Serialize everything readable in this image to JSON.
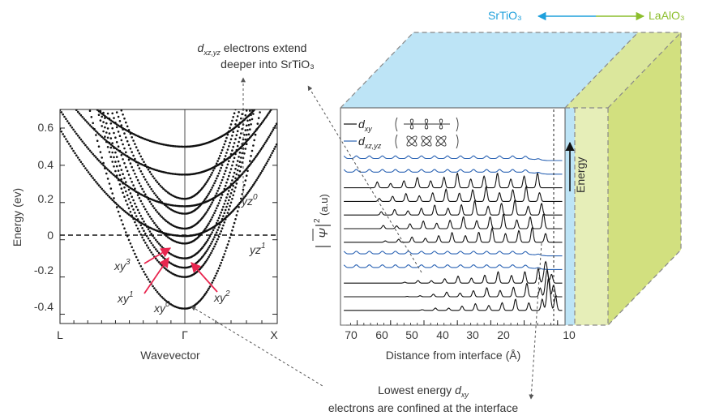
{
  "colors": {
    "srtio3": "#1ea0dc",
    "laalo3": "#8cbe2d",
    "sto_fill": "#bde4f6",
    "lao_fill": "#dbe79c",
    "dxy_line": "#111111",
    "dxzyz_line": "#2c64b4",
    "arrow_red": "#e8264f"
  },
  "header": {
    "srtio3_label": "SrTiO₃",
    "laalo3_label": "LaAlO₃"
  },
  "annotations": {
    "top_line1_sym": "d",
    "top_line1_sub": "xz,yz",
    "top_line1_rest": " electrons extend",
    "top_line2": "deeper into SrTiO₃",
    "bottom_line1": "Lowest energy ",
    "bottom_line1_sym": "d",
    "bottom_line1_sub": "xy",
    "bottom_line2": "electrons are confined at the interface"
  },
  "chart_data": [
    {
      "type": "line",
      "title": "",
      "xlabel": "Wavevector",
      "ylabel": "Energy (ev)",
      "ylim": [
        -0.45,
        0.7
      ],
      "x_ticks": [
        "L",
        "Γ",
        "X"
      ],
      "y_ticks": [
        "0.6",
        "0.4",
        "0.2",
        "0",
        "-0.2",
        "-0.4"
      ],
      "fermi_level": 0,
      "band_labels": [
        {
          "base": "xy",
          "sup": "0",
          "min_energy": -0.37
        },
        {
          "base": "xy",
          "sup": "1",
          "min_energy": -0.2
        },
        {
          "base": "xy",
          "sup": "2",
          "min_energy": -0.15
        },
        {
          "base": "xy",
          "sup": "3",
          "min_energy": -0.1
        },
        {
          "base": "yz",
          "sup": "1",
          "min_energy": 0.02
        },
        {
          "base": "yz",
          "sup": "0",
          "min_energy": 0.18
        }
      ],
      "series": [
        {
          "min": -0.37,
          "curv": 1.6
        },
        {
          "min": -0.2,
          "curv": 1.6
        },
        {
          "min": -0.15,
          "curv": 1.6
        },
        {
          "min": -0.1,
          "curv": 1.6
        },
        {
          "min": -0.02,
          "curv": 1.6
        },
        {
          "min": 0.06,
          "curv": 1.6
        },
        {
          "min": 0.14,
          "curv": 1.6
        },
        {
          "min": 0.22,
          "curv": 1.6
        },
        {
          "min": 0.02,
          "curv": 0.5
        },
        {
          "min": 0.18,
          "curv": 0.45
        },
        {
          "min": 0.35,
          "curv": 0.4
        },
        {
          "min": 0.5,
          "curv": 0.35
        }
      ]
    },
    {
      "type": "line",
      "title": "",
      "xlabel": "Distance from interface (Å)",
      "ylabel_sym": "Ψ",
      "ylabel_sup": "2",
      "ylabel_unit": "(a.u)",
      "energy_label": "Energy",
      "x_ticks": [
        "70",
        "60",
        "50",
        "40",
        "30",
        "20",
        "10"
      ],
      "xlim": [
        75,
        8
      ],
      "legend": [
        {
          "sym": "d",
          "sub": "xy"
        },
        {
          "sym": "d",
          "sub": "xz,yz"
        }
      ],
      "traces": [
        "dxz_yz",
        "dxz_yz",
        "dxy",
        "dxy",
        "dxy",
        "dxy",
        "dxy",
        "dxz_yz",
        "dxz_yz",
        "dxy",
        "dxy",
        "dxy"
      ]
    }
  ]
}
